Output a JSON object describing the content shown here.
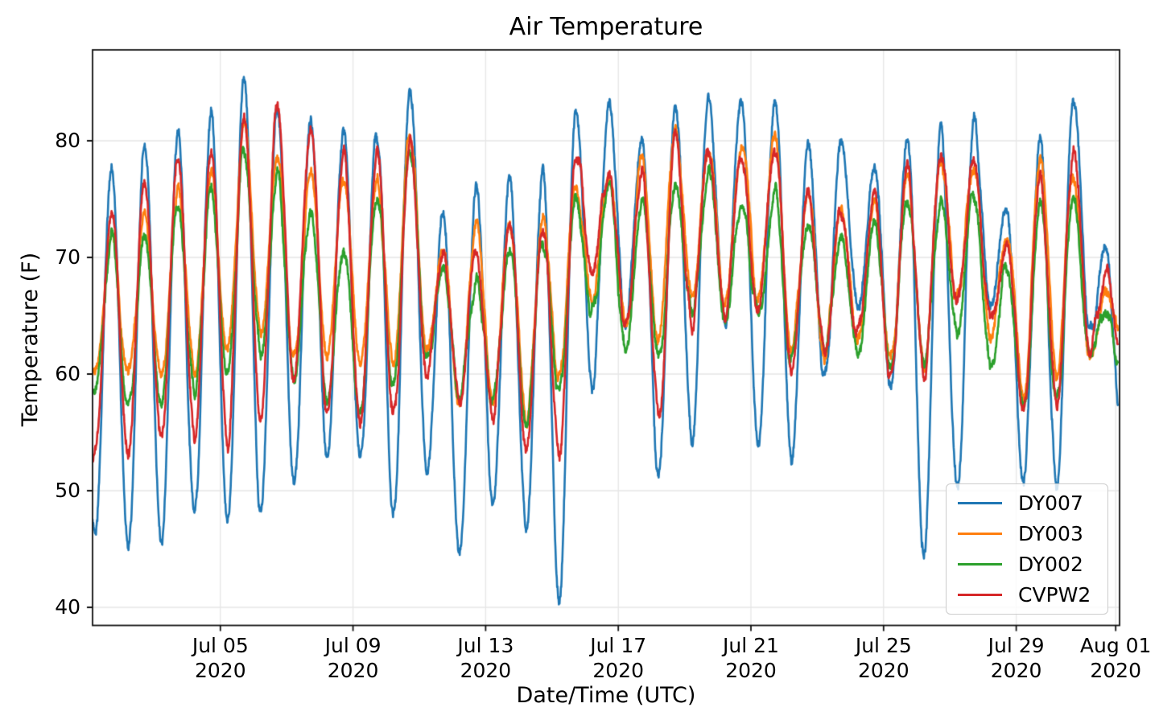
{
  "chart_data": {
    "type": "line",
    "title": "Air Temperature",
    "xlabel": "Date/Time (UTC)",
    "ylabel": "Temperature (F)",
    "x_start_date": "2020-07-01",
    "x_end_date": "2020-08-01",
    "ylim": [
      38.4,
      87.8
    ],
    "grid": true,
    "legend_position": "lower right",
    "y_ticks": [
      "40",
      "50",
      "60",
      "70",
      "80"
    ],
    "y_tick_values": [
      40,
      50,
      60,
      70,
      80
    ],
    "x_ticks": [
      {
        "day": 4,
        "month_day": "Jul 05",
        "year": "2020"
      },
      {
        "day": 8,
        "month_day": "Jul 09",
        "year": "2020"
      },
      {
        "day": 12,
        "month_day": "Jul 13",
        "year": "2020"
      },
      {
        "day": 16,
        "month_day": "Jul 17",
        "year": "2020"
      },
      {
        "day": 20,
        "month_day": "Jul 21",
        "year": "2020"
      },
      {
        "day": 24,
        "month_day": "Jul 25",
        "year": "2020"
      },
      {
        "day": 28,
        "month_day": "Jul 29",
        "year": "2020"
      },
      {
        "day": 31,
        "month_day": "Aug 01",
        "year": "2020"
      }
    ],
    "diurnal_trough_day_fraction": 0.22,
    "diurnal_peak_day_fraction": 0.72,
    "series": [
      {
        "name": "DY007",
        "color": "#1f77b4",
        "start_f": 48.5,
        "end_f": 56.7,
        "daily_min_max_f": [
          [
            46.5,
            77.8
          ],
          [
            44.5,
            79.6
          ],
          [
            45.2,
            80.5
          ],
          [
            48.0,
            82.5
          ],
          [
            47.5,
            85.4
          ],
          [
            47.8,
            83.2
          ],
          [
            50.8,
            81.8
          ],
          [
            53.2,
            80.6
          ],
          [
            52.7,
            80.7
          ],
          [
            48.0,
            84.8
          ],
          [
            51.5,
            73.4
          ],
          [
            44.6,
            75.9
          ],
          [
            49.2,
            76.9
          ],
          [
            47.0,
            77.0
          ],
          [
            41.2,
            82.3
          ],
          [
            59.2,
            83.8
          ],
          [
            64.5,
            79.9
          ],
          [
            51.1,
            83.7
          ],
          [
            54.7,
            83.9
          ],
          [
            64.8,
            83.1
          ],
          [
            54.4,
            83.9
          ],
          [
            53.0,
            79.5
          ],
          [
            59.5,
            79.9
          ],
          [
            65.6,
            77.8
          ],
          [
            59.0,
            80.6
          ],
          [
            44.8,
            81.2
          ],
          [
            49.9,
            81.5
          ],
          [
            65.2,
            73.8
          ],
          [
            51.0,
            79.6
          ],
          [
            50.4,
            83.4
          ],
          [
            63.5,
            71.2
          ]
        ]
      },
      {
        "name": "DY003",
        "color": "#ff7f0e",
        "start_f": 62.0,
        "end_f": 63.5,
        "daily_min_max_f": [
          [
            60.5,
            71.5
          ],
          [
            60.0,
            73.0
          ],
          [
            59.5,
            75.5
          ],
          [
            60.0,
            77.0
          ],
          [
            61.5,
            82.0
          ],
          [
            63.5,
            78.7
          ],
          [
            61.5,
            77.5
          ],
          [
            61.0,
            76.9
          ],
          [
            61.5,
            76.1
          ],
          [
            61.0,
            80.7
          ],
          [
            62.5,
            70.5
          ],
          [
            57.5,
            72.6
          ],
          [
            57.0,
            73.5
          ],
          [
            56.2,
            73.0
          ],
          [
            59.5,
            76.2
          ],
          [
            66.4,
            77.2
          ],
          [
            64.0,
            78.1
          ],
          [
            62.5,
            81.4
          ],
          [
            66.0,
            79.5
          ],
          [
            65.5,
            79.8
          ],
          [
            66.3,
            80.6
          ],
          [
            62.2,
            75.3
          ],
          [
            62.0,
            73.6
          ],
          [
            63.1,
            74.5
          ],
          [
            61.4,
            76.5
          ],
          [
            61.0,
            78.1
          ],
          [
            66.5,
            78.0
          ],
          [
            62.7,
            72.2
          ],
          [
            58.0,
            78.5
          ],
          [
            60.2,
            77.5
          ],
          [
            61.5,
            67.0
          ]
        ]
      },
      {
        "name": "DY002",
        "color": "#2ca02c",
        "start_f": 59.5,
        "end_f": 61.0,
        "daily_min_max_f": [
          [
            58.5,
            71.6
          ],
          [
            57.0,
            71.9
          ],
          [
            58.0,
            74.0
          ],
          [
            58.5,
            75.4
          ],
          [
            60.0,
            79.3
          ],
          [
            62.0,
            76.8
          ],
          [
            59.0,
            74.4
          ],
          [
            58.0,
            70.9
          ],
          [
            57.0,
            75.4
          ],
          [
            58.5,
            79.0
          ],
          [
            61.0,
            69.0
          ],
          [
            58.5,
            67.9
          ],
          [
            57.5,
            70.5
          ],
          [
            56.2,
            71.6
          ],
          [
            58.3,
            75.2
          ],
          [
            65.5,
            75.8
          ],
          [
            62.2,
            74.4
          ],
          [
            61.3,
            76.2
          ],
          [
            65.1,
            76.9
          ],
          [
            64.5,
            74.5
          ],
          [
            65.1,
            75.6
          ],
          [
            61.0,
            72.8
          ],
          [
            62.0,
            71.6
          ],
          [
            62.1,
            73.1
          ],
          [
            60.5,
            75.0
          ],
          [
            60.5,
            74.4
          ],
          [
            63.6,
            75.4
          ],
          [
            60.8,
            69.3
          ],
          [
            56.6,
            74.5
          ],
          [
            57.5,
            75.0
          ],
          [
            61.0,
            65.5
          ]
        ]
      },
      {
        "name": "CVPW2",
        "color": "#d62728",
        "start_f": 53.5,
        "end_f": 62.0,
        "daily_min_max_f": [
          [
            53.0,
            74.5
          ],
          [
            53.5,
            76.9
          ],
          [
            54.0,
            78.9
          ],
          [
            54.5,
            79.2
          ],
          [
            54.3,
            81.7
          ],
          [
            56.5,
            82.8
          ],
          [
            59.4,
            81.3
          ],
          [
            56.7,
            79.0
          ],
          [
            55.8,
            78.7
          ],
          [
            56.3,
            79.9
          ],
          [
            60.0,
            70.5
          ],
          [
            57.8,
            70.4
          ],
          [
            56.5,
            73.5
          ],
          [
            53.8,
            73.0
          ],
          [
            53.0,
            79.0
          ],
          [
            69.3,
            77.5
          ],
          [
            64.2,
            77.0
          ],
          [
            56.4,
            80.1
          ],
          [
            64.3,
            79.7
          ],
          [
            65.0,
            78.5
          ],
          [
            65.2,
            79.8
          ],
          [
            60.0,
            75.6
          ],
          [
            62.5,
            73.8
          ],
          [
            63.5,
            74.9
          ],
          [
            59.8,
            77.3
          ],
          [
            60.0,
            78.5
          ],
          [
            66.5,
            77.9
          ],
          [
            64.6,
            71.3
          ],
          [
            57.3,
            76.3
          ],
          [
            57.7,
            78.6
          ],
          [
            62.5,
            68.8
          ]
        ]
      }
    ],
    "style": {
      "grid_color": "#e6e6e6",
      "spine_color": "#111111",
      "background": "#ffffff"
    }
  },
  "legend": {
    "items": [
      {
        "label": "DY007",
        "color": "#1f77b4"
      },
      {
        "label": "DY003",
        "color": "#ff7f0e"
      },
      {
        "label": "DY002",
        "color": "#2ca02c"
      },
      {
        "label": "CVPW2",
        "color": "#d62728"
      }
    ]
  }
}
